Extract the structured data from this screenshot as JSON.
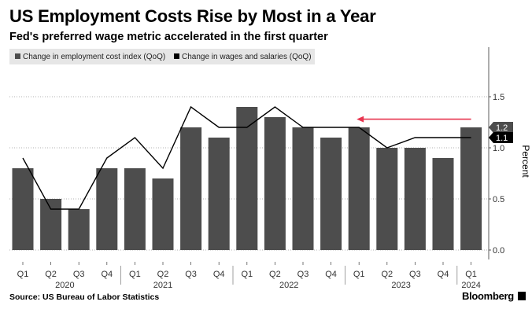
{
  "title": "US Employment Costs Rise by Most in a Year",
  "subtitle": "Fed's preferred wage metric accelerated in the first quarter",
  "source": "Source: US Bureau of Labor Statistics",
  "brand": "Bloomberg",
  "chart_data": {
    "type": "bar",
    "categories": [
      "Q1",
      "Q2",
      "Q3",
      "Q4",
      "Q1",
      "Q2",
      "Q3",
      "Q4",
      "Q1",
      "Q2",
      "Q3",
      "Q4",
      "Q1",
      "Q2",
      "Q3",
      "Q4",
      "Q1"
    ],
    "year_labels": [
      {
        "label": "2020",
        "index": 1.5
      },
      {
        "label": "2021",
        "index": 5
      },
      {
        "label": "2022",
        "index": 9.5
      },
      {
        "label": "2023",
        "index": 13.5
      },
      {
        "label": "2024",
        "index": 16
      }
    ],
    "series": [
      {
        "name": "Change in employment cost index (QoQ)",
        "kind": "bar",
        "color": "#4d4d4d",
        "values": [
          0.8,
          0.5,
          0.4,
          0.8,
          0.8,
          0.7,
          1.2,
          1.1,
          1.4,
          1.3,
          1.2,
          1.1,
          1.2,
          1.0,
          1.0,
          0.9,
          1.2
        ]
      },
      {
        "name": "Change in wages and salaries (QoQ)",
        "kind": "line",
        "color": "#000000",
        "values": [
          0.9,
          0.4,
          0.4,
          0.9,
          1.1,
          0.8,
          1.4,
          1.2,
          1.2,
          1.4,
          1.2,
          1.2,
          1.2,
          1.0,
          1.1,
          1.1,
          1.1
        ]
      }
    ],
    "ylabel": "Percent",
    "ylim": [
      0,
      1.9
    ],
    "yticks": [
      "0.0",
      "0.5",
      "1.0",
      "1.5"
    ],
    "ytick_values": [
      0,
      0.5,
      1.0,
      1.5
    ],
    "end_labels": [
      {
        "value": 1.2,
        "text": "1.2",
        "color": "#4d4d4d"
      },
      {
        "value": 1.1,
        "text": "1.1",
        "color": "#000000"
      }
    ],
    "annotation_arrow": {
      "from_index": 16,
      "to_index": 12,
      "value": 1.28,
      "color": "#e8354f"
    }
  }
}
